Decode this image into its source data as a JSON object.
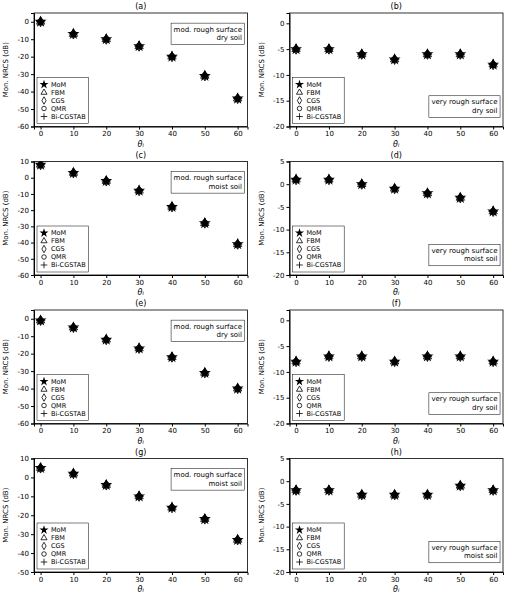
{
  "chart_data": [
    {
      "type": "scatter",
      "title": "(a)",
      "x_label": "θᵢ",
      "y_label": "Mon. NRCS (dB)",
      "annotation": [
        "mod. rough surface",
        "dry soil"
      ],
      "x": [
        0,
        10,
        20,
        30,
        40,
        50,
        60
      ],
      "series": [
        {
          "name": "MoM",
          "marker": "star",
          "color": "black",
          "values": [
            0,
            -7,
            -10,
            -14,
            -20,
            -31,
            -44
          ]
        },
        {
          "name": "FBM",
          "marker": "triangle",
          "color": "black",
          "values": [
            0,
            -7,
            -10,
            -14,
            -20,
            -31,
            -44
          ]
        },
        {
          "name": "CGS",
          "marker": "diamond",
          "color": "black",
          "values": [
            0,
            -7,
            -10,
            -14,
            -20,
            -31,
            -44
          ]
        },
        {
          "name": "QMR",
          "marker": "circle",
          "color": "black",
          "values": [
            0,
            -7,
            -10,
            -14,
            -20,
            -31,
            -44
          ]
        },
        {
          "name": "Bi-CGSTAB",
          "marker": "plus",
          "color": "black",
          "values": [
            0,
            -7,
            -10,
            -14,
            -20,
            -31,
            -44
          ]
        }
      ],
      "xlim": [
        -2,
        63
      ],
      "xticks": [
        0,
        10,
        20,
        30,
        40,
        50,
        60
      ],
      "ylim": [
        -60,
        5
      ],
      "yticks": [
        0,
        -10,
        -20,
        -30,
        -40,
        -50,
        -60
      ],
      "grid": false,
      "legend": "lower left"
    },
    {
      "type": "scatter",
      "title": "(b)",
      "x_label": "θᵢ",
      "y_label": "Mon. NRCS (dB)",
      "annotation": [
        "very rough surface",
        "dry soil"
      ],
      "x": [
        0,
        10,
        20,
        30,
        40,
        50,
        60
      ],
      "series": [
        {
          "name": "MoM",
          "marker": "star",
          "color": "black",
          "values": [
            -5,
            -5,
            -6,
            -7,
            -6,
            -6,
            -8
          ]
        },
        {
          "name": "FBM",
          "marker": "triangle",
          "color": "black",
          "values": [
            -5,
            -5,
            -6,
            -7,
            -6,
            -6,
            -8
          ]
        },
        {
          "name": "CGS",
          "marker": "diamond",
          "color": "black",
          "values": [
            -5,
            -5,
            -6,
            -7,
            -6,
            -6,
            -8
          ]
        },
        {
          "name": "QMR",
          "marker": "circle",
          "color": "black",
          "values": [
            -5,
            -5,
            -6,
            -7,
            -6,
            -6,
            -8
          ]
        },
        {
          "name": "Bi-CGSTAB",
          "marker": "plus",
          "color": "black",
          "values": [
            -5,
            -5,
            -6,
            -7,
            -6,
            -6,
            -8
          ]
        }
      ],
      "xlim": [
        -2,
        63
      ],
      "xticks": [
        0,
        10,
        20,
        30,
        40,
        50,
        60
      ],
      "ylim": [
        -20,
        2
      ],
      "yticks": [
        0,
        -5,
        -10,
        -15,
        -20
      ],
      "grid": false,
      "legend": "lower left"
    },
    {
      "type": "scatter",
      "title": "(c)",
      "x_label": "θᵢ",
      "y_label": "Mon. NRCS (dB)",
      "annotation": [
        "mod. rough surface",
        "moist soil"
      ],
      "x": [
        0,
        10,
        20,
        30,
        40,
        50,
        60
      ],
      "series": [
        {
          "name": "MoM",
          "marker": "star",
          "color": "black",
          "values": [
            8,
            3,
            -2,
            -8,
            -18,
            -28,
            -41
          ]
        },
        {
          "name": "FBM",
          "marker": "triangle",
          "color": "black",
          "values": [
            8,
            3,
            -2,
            -8,
            -18,
            -28,
            -41
          ]
        },
        {
          "name": "CGS",
          "marker": "diamond",
          "color": "black",
          "values": [
            8,
            3,
            -2,
            -8,
            -18,
            -28,
            -41
          ]
        },
        {
          "name": "QMR",
          "marker": "circle",
          "color": "black",
          "values": [
            8,
            3,
            -2,
            -8,
            -18,
            -28,
            -41
          ]
        },
        {
          "name": "Bi-CGSTAB",
          "marker": "plus",
          "color": "black",
          "values": [
            8,
            3,
            -2,
            -8,
            -18,
            -28,
            -41
          ]
        }
      ],
      "xlim": [
        -2,
        63
      ],
      "xticks": [
        0,
        10,
        20,
        30,
        40,
        50,
        60
      ],
      "ylim": [
        -60,
        10
      ],
      "yticks": [
        10,
        0,
        -10,
        -20,
        -30,
        -40,
        -50,
        -60
      ],
      "grid": false,
      "legend": "lower left"
    },
    {
      "type": "scatter",
      "title": "(d)",
      "x_label": "θᵢ",
      "y_label": "Mon. NRCS (dB)",
      "annotation": [
        "very rough surface",
        "moist soil"
      ],
      "x": [
        0,
        10,
        20,
        30,
        40,
        50,
        60
      ],
      "series": [
        {
          "name": "MoM",
          "marker": "star",
          "color": "black",
          "values": [
            1,
            1,
            0,
            -1,
            -2,
            -3,
            -6
          ]
        },
        {
          "name": "FBM",
          "marker": "triangle",
          "color": "black",
          "values": [
            1,
            1,
            0,
            -1,
            -2,
            -3,
            -6
          ]
        },
        {
          "name": "CGS",
          "marker": "diamond",
          "color": "black",
          "values": [
            1,
            1,
            0,
            -1,
            -2,
            -3,
            -6
          ]
        },
        {
          "name": "QMR",
          "marker": "circle",
          "color": "black",
          "values": [
            1,
            1,
            0,
            -1,
            -2,
            -3,
            -6
          ]
        },
        {
          "name": "Bi-CGSTAB",
          "marker": "plus",
          "color": "black",
          "values": [
            1,
            1,
            0,
            -1,
            -2,
            -3,
            -6
          ]
        }
      ],
      "xlim": [
        -2,
        63
      ],
      "xticks": [
        0,
        10,
        20,
        30,
        40,
        50,
        60
      ],
      "ylim": [
        -20,
        5
      ],
      "yticks": [
        5,
        0,
        -5,
        -10,
        -15,
        -20
      ],
      "grid": false,
      "legend": "lower left"
    },
    {
      "type": "scatter",
      "title": "(e)",
      "x_label": "θᵢ",
      "y_label": "Mon. NRCS (dB)",
      "annotation": [
        "mod. rough surface",
        "dry soil"
      ],
      "x": [
        0,
        10,
        20,
        30,
        40,
        50,
        60
      ],
      "series": [
        {
          "name": "MoM",
          "marker": "star",
          "color": "black",
          "values": [
            -1,
            -5,
            -12,
            -17,
            -22,
            -31,
            -40
          ]
        },
        {
          "name": "FBM",
          "marker": "triangle",
          "color": "black",
          "values": [
            -1,
            -5,
            -12,
            -17,
            -22,
            -31,
            -40
          ]
        },
        {
          "name": "CGS",
          "marker": "diamond",
          "color": "black",
          "values": [
            -1,
            -5,
            -12,
            -17,
            -22,
            -31,
            -40
          ]
        },
        {
          "name": "QMR",
          "marker": "circle",
          "color": "black",
          "values": [
            -1,
            -5,
            -12,
            -17,
            -22,
            -31,
            -40
          ]
        },
        {
          "name": "Bi-CGSTAB",
          "marker": "plus",
          "color": "black",
          "values": [
            -1,
            -5,
            -12,
            -17,
            -22,
            -31,
            -40
          ]
        }
      ],
      "xlim": [
        -2,
        63
      ],
      "xticks": [
        0,
        10,
        20,
        30,
        40,
        50,
        60
      ],
      "ylim": [
        -60,
        5
      ],
      "yticks": [
        0,
        -10,
        -20,
        -30,
        -40,
        -50,
        -60
      ],
      "grid": false,
      "legend": "lower left"
    },
    {
      "type": "scatter",
      "title": "(f)",
      "x_label": "θᵢ",
      "y_label": "Mon. NRCS (dB)",
      "annotation": [
        "very rough surface",
        "dry soil"
      ],
      "x": [
        0,
        10,
        20,
        30,
        40,
        50,
        60
      ],
      "series": [
        {
          "name": "MoM",
          "marker": "star",
          "color": "black",
          "values": [
            -8,
            -7,
            -7,
            -8,
            -7,
            -7,
            -8
          ]
        },
        {
          "name": "FBM",
          "marker": "triangle",
          "color": "black",
          "values": [
            -8,
            -7,
            -7,
            -8,
            -7,
            -7,
            -8
          ]
        },
        {
          "name": "CGS",
          "marker": "diamond",
          "color": "black",
          "values": [
            -8,
            -7,
            -7,
            -8,
            -7,
            -7,
            -8
          ]
        },
        {
          "name": "QMR",
          "marker": "circle",
          "color": "black",
          "values": [
            -8,
            -7,
            -7,
            -8,
            -7,
            -7,
            -8
          ]
        },
        {
          "name": "Bi-CGSTAB",
          "marker": "plus",
          "color": "black",
          "values": [
            -8,
            -7,
            -7,
            -8,
            -7,
            -7,
            -8
          ]
        }
      ],
      "xlim": [
        -2,
        63
      ],
      "xticks": [
        0,
        10,
        20,
        30,
        40,
        50,
        60
      ],
      "ylim": [
        -20,
        2
      ],
      "yticks": [
        0,
        -5,
        -10,
        -15,
        -20
      ],
      "grid": false,
      "legend": "lower left"
    },
    {
      "type": "scatter",
      "title": "(g)",
      "x_label": "θᵢ",
      "y_label": "Mon. NRCS (dB)",
      "annotation": [
        "mod. rough surface",
        "moist soil"
      ],
      "x": [
        0,
        10,
        20,
        30,
        40,
        50,
        60
      ],
      "series": [
        {
          "name": "MoM",
          "marker": "star",
          "color": "black",
          "values": [
            5,
            2,
            -4,
            -10,
            -16,
            -22,
            -33
          ]
        },
        {
          "name": "FBM",
          "marker": "triangle",
          "color": "black",
          "values": [
            5,
            2,
            -4,
            -10,
            -16,
            -22,
            -33
          ]
        },
        {
          "name": "CGS",
          "marker": "diamond",
          "color": "black",
          "values": [
            5,
            2,
            -4,
            -10,
            -16,
            -22,
            -33
          ]
        },
        {
          "name": "QMR",
          "marker": "circle",
          "color": "black",
          "values": [
            5,
            2,
            -4,
            -10,
            -16,
            -22,
            -33
          ]
        },
        {
          "name": "Bi-CGSTAB",
          "marker": "plus",
          "color": "black",
          "values": [
            5,
            2,
            -4,
            -10,
            -16,
            -22,
            -33
          ]
        }
      ],
      "xlim": [
        -2,
        63
      ],
      "xticks": [
        0,
        10,
        20,
        30,
        40,
        50,
        60
      ],
      "ylim": [
        -50,
        10
      ],
      "yticks": [
        10,
        0,
        -10,
        -20,
        -30,
        -40,
        -50
      ],
      "grid": false,
      "legend": "lower left"
    },
    {
      "type": "scatter",
      "title": "(h)",
      "x_label": "θᵢ",
      "y_label": "Mon. NRCS (dB)",
      "annotation": [
        "very rough surface",
        "moist soil"
      ],
      "x": [
        0,
        10,
        20,
        30,
        40,
        50,
        60
      ],
      "series": [
        {
          "name": "MoM",
          "marker": "star",
          "color": "black",
          "values": [
            -2,
            -2,
            -3,
            -3,
            -3,
            -1,
            -2
          ]
        },
        {
          "name": "FBM",
          "marker": "triangle",
          "color": "black",
          "values": [
            -2,
            -2,
            -3,
            -3,
            -3,
            -1,
            -2
          ]
        },
        {
          "name": "CGS",
          "marker": "diamond",
          "color": "black",
          "values": [
            -2,
            -2,
            -3,
            -3,
            -3,
            -1,
            -2
          ]
        },
        {
          "name": "QMR",
          "marker": "circle",
          "color": "black",
          "values": [
            -2,
            -2,
            -3,
            -3,
            -3,
            -1,
            -2
          ]
        },
        {
          "name": "Bi-CGSTAB",
          "marker": "plus",
          "color": "black",
          "values": [
            -2,
            -2,
            -3,
            -3,
            -3,
            -1,
            -2
          ]
        }
      ],
      "xlim": [
        -2,
        63
      ],
      "xticks": [
        0,
        10,
        20,
        30,
        40,
        50,
        60
      ],
      "ylim": [
        -20,
        5
      ],
      "yticks": [
        5,
        0,
        -5,
        -10,
        -15,
        -20
      ],
      "grid": false,
      "legend": "lower left"
    }
  ]
}
